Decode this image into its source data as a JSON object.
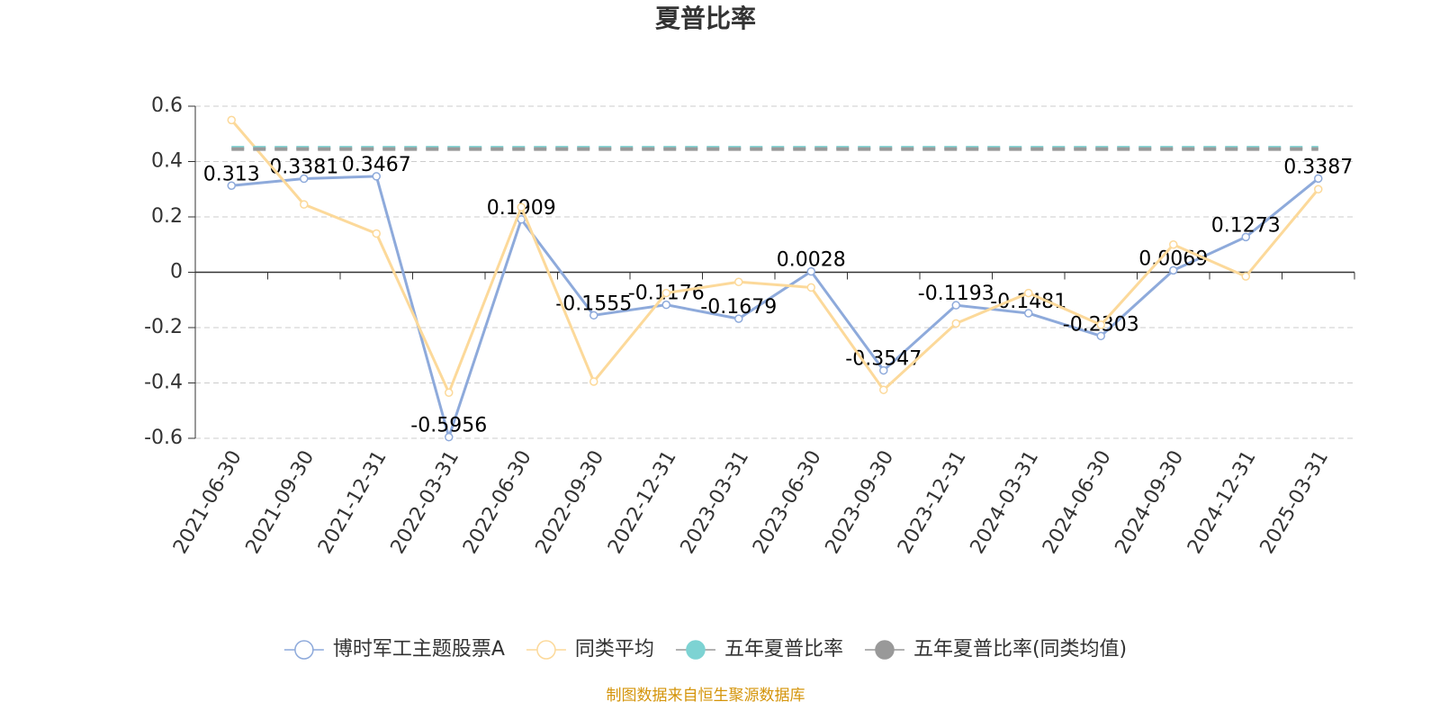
{
  "chart_data": {
    "type": "line",
    "title": "夏普比率",
    "categories": [
      "2021-06-30",
      "2021-09-30",
      "2021-12-31",
      "2022-03-31",
      "2022-06-30",
      "2022-09-30",
      "2022-12-31",
      "2023-03-31",
      "2023-06-30",
      "2023-09-30",
      "2023-12-31",
      "2024-03-31",
      "2024-06-30",
      "2024-09-30",
      "2024-12-31",
      "2025-03-31"
    ],
    "series": [
      {
        "name": "博时军工主题股票A",
        "color": "#8eaadb",
        "labels": true,
        "values": [
          0.313,
          0.3381,
          0.3467,
          -0.5956,
          0.1909,
          -0.1555,
          -0.1176,
          -0.1679,
          0.0028,
          -0.3547,
          -0.1193,
          -0.1481,
          -0.2303,
          0.0069,
          0.1273,
          0.3387
        ]
      },
      {
        "name": "同类平均",
        "color": "#fcd99a",
        "labels": false,
        "values": [
          0.55,
          0.245,
          0.14,
          -0.435,
          0.235,
          -0.395,
          -0.075,
          -0.035,
          -0.055,
          -0.425,
          -0.185,
          -0.075,
          -0.19,
          0.1,
          -0.015,
          0.3
        ]
      },
      {
        "name": "五年夏普比率",
        "color": "#7dd3d3",
        "dashed": true,
        "values": [
          0.45,
          0.45,
          0.45,
          0.45,
          0.45,
          0.45,
          0.45,
          0.45,
          0.45,
          0.45,
          0.45,
          0.45,
          0.45,
          0.45,
          0.45,
          0.45
        ]
      },
      {
        "name": "五年夏普比率(同类均值)",
        "color": "#999999",
        "dashed": true,
        "values": [
          0.445,
          0.445,
          0.445,
          0.445,
          0.445,
          0.445,
          0.445,
          0.445,
          0.445,
          0.445,
          0.445,
          0.445,
          0.445,
          0.445,
          0.445,
          0.445
        ]
      }
    ],
    "ylim": [
      -0.6,
      0.6
    ],
    "yticks": [
      0.6,
      0.4,
      0.2,
      0,
      -0.2,
      -0.4,
      -0.6
    ],
    "grid": true,
    "legend": "bottom",
    "source": "制图数据来自恒生聚源数据库"
  }
}
